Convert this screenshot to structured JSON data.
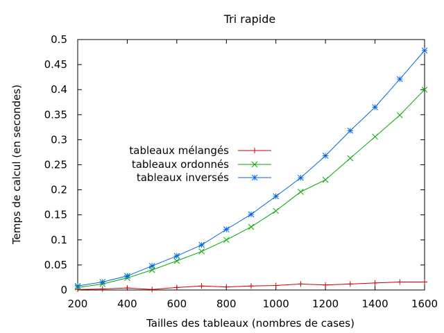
{
  "chart_data": {
    "type": "line",
    "title": "Tri rapide",
    "xlabel": "Tailles des tableaux (nombres de cases)",
    "ylabel": "Temps de calcul (en secondes)",
    "xlim": [
      200,
      1600
    ],
    "ylim": [
      0,
      0.5
    ],
    "xticks": [
      200,
      400,
      600,
      800,
      1000,
      1200,
      1400,
      1600
    ],
    "yticks": [
      0,
      0.05,
      0.1,
      0.15,
      0.2,
      0.25,
      0.3,
      0.35,
      0.4,
      0.45,
      0.5
    ],
    "grid": false,
    "legend_position": "middle-left",
    "x": [
      200,
      300,
      400,
      500,
      600,
      700,
      800,
      900,
      1000,
      1100,
      1200,
      1300,
      1400,
      1500,
      1600
    ],
    "series": [
      {
        "name": "tableaux mélangés",
        "color": "#cc0000",
        "marker": "plus",
        "values": [
          0.001,
          0.002,
          0.004,
          0.001,
          0.005,
          0.008,
          0.006,
          0.008,
          0.009,
          0.012,
          0.01,
          0.012,
          0.014,
          0.016,
          0.016
        ]
      },
      {
        "name": "tableaux ordonnés",
        "color": "#00aa00",
        "marker": "cross",
        "values": [
          0.005,
          0.012,
          0.024,
          0.04,
          0.058,
          0.077,
          0.1,
          0.126,
          0.158,
          0.196,
          0.22,
          0.263,
          0.306,
          0.349,
          0.4
        ]
      },
      {
        "name": "tableaux inversés",
        "color": "#0066dd",
        "marker": "star",
        "values": [
          0.008,
          0.016,
          0.028,
          0.048,
          0.068,
          0.09,
          0.121,
          0.151,
          0.187,
          0.224,
          0.268,
          0.318,
          0.365,
          0.421,
          0.478
        ]
      }
    ]
  }
}
